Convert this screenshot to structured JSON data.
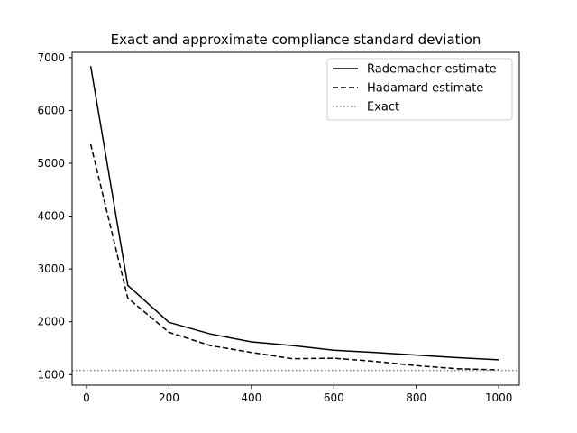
{
  "chart_data": {
    "type": "line",
    "title": "Exact and approximate compliance standard deviation",
    "xlabel": "",
    "ylabel": "",
    "xlim": [
      -35,
      1050
    ],
    "ylim": [
      800,
      7100
    ],
    "x_ticks": [
      0,
      200,
      400,
      600,
      800,
      1000
    ],
    "y_ticks": [
      1000,
      2000,
      3000,
      4000,
      5000,
      6000,
      7000
    ],
    "x_tick_labels": [
      "0",
      "200",
      "400",
      "600",
      "800",
      "1000"
    ],
    "y_tick_labels": [
      "1000",
      "2000",
      "3000",
      "4000",
      "5000",
      "6000",
      "7000"
    ],
    "grid": false,
    "legend_position": "top-right",
    "series": [
      {
        "name": "Rademacher estimate",
        "style": "solid",
        "color": "#000000",
        "x": [
          10,
          100,
          200,
          300,
          400,
          500,
          600,
          700,
          800,
          900,
          1000
        ],
        "y": [
          6840,
          2690,
          1990,
          1770,
          1620,
          1550,
          1460,
          1420,
          1370,
          1320,
          1280
        ]
      },
      {
        "name": "Hadamard estimate",
        "style": "dashed",
        "color": "#000000",
        "x": [
          10,
          100,
          200,
          300,
          400,
          500,
          600,
          700,
          800,
          900,
          1000
        ],
        "y": [
          5360,
          2450,
          1800,
          1550,
          1420,
          1300,
          1310,
          1250,
          1170,
          1110,
          1090
        ]
      },
      {
        "name": "Exact",
        "style": "dotted",
        "color": "#808080",
        "x": [
          -35,
          1050
        ],
        "y": [
          1080,
          1080
        ]
      }
    ]
  }
}
